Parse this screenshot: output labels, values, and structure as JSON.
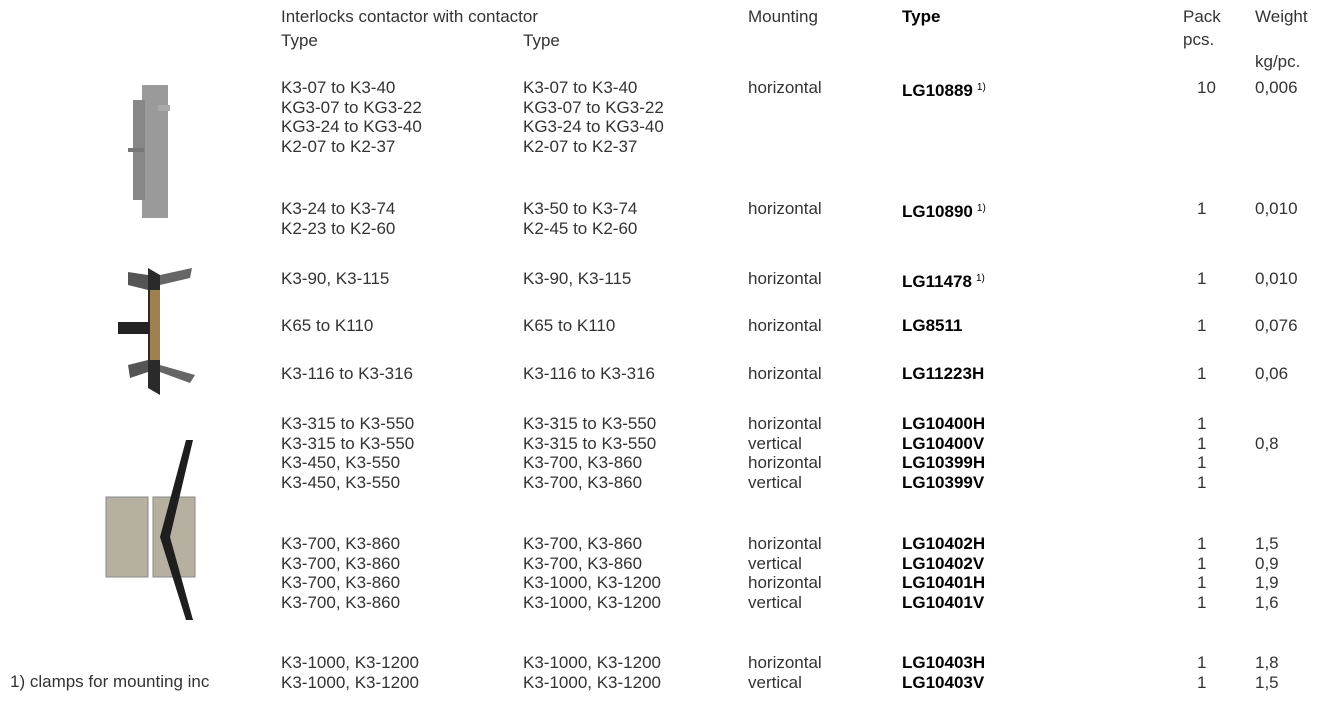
{
  "header": {
    "interlocks": "Interlocks contactor with contactor",
    "type_a": "Type",
    "type_b": "Type",
    "mounting": "Mounting",
    "type": "Type",
    "pack": "Pack",
    "pcs": "pcs.",
    "weight": "Weight",
    "unit": "kg/pc."
  },
  "groups": [
    {
      "a": [
        "K3-07 to K3-40",
        "KG3-07 to KG3-22",
        "KG3-24 to KG3-40",
        "K2-07 to K2-37"
      ],
      "b": [
        "K3-07 to K3-40",
        "KG3-07 to KG3-22",
        "KG3-24 to KG3-40",
        "K2-07 to K2-37"
      ],
      "mounting": [
        "horizontal"
      ],
      "type": [
        "LG10889"
      ],
      "note": "1)",
      "pack": [
        "10"
      ],
      "weight": [
        "0,006"
      ]
    },
    {
      "a": [
        "K3-24 to K3-74",
        "K2-23 to K2-60"
      ],
      "b": [
        "K3-50 to K3-74",
        "K2-45 to K2-60"
      ],
      "mounting": [
        "horizontal"
      ],
      "type": [
        "LG10890"
      ],
      "note": "1)",
      "pack": [
        "1"
      ],
      "weight": [
        "0,010"
      ]
    },
    {
      "a": [
        "K3-90, K3-115"
      ],
      "b": [
        "K3-90, K3-115"
      ],
      "mounting": [
        "horizontal"
      ],
      "type": [
        "LG11478"
      ],
      "note": "1)",
      "pack": [
        "1"
      ],
      "weight": [
        "0,010"
      ]
    },
    {
      "a": [
        "K65 to K110"
      ],
      "b": [
        "K65 to K110"
      ],
      "mounting": [
        "horizontal"
      ],
      "type": [
        "LG8511"
      ],
      "pack": [
        "1"
      ],
      "weight": [
        "0,076"
      ]
    },
    {
      "a": [
        "K3-116 to K3-316"
      ],
      "b": [
        "K3-116 to K3-316"
      ],
      "mounting": [
        "horizontal"
      ],
      "type": [
        "LG11223H"
      ],
      "pack": [
        "1"
      ],
      "weight": [
        "0,06"
      ]
    },
    {
      "a": [
        "K3-315 to K3-550",
        "K3-315 to K3-550",
        "K3-450, K3-550",
        "K3-450, K3-550"
      ],
      "b": [
        "K3-315 to K3-550",
        "K3-315 to K3-550",
        "K3-700, K3-860",
        "K3-700, K3-860"
      ],
      "mounting": [
        "horizontal",
        "vertical",
        "horizontal",
        "vertical"
      ],
      "type": [
        "LG10400H",
        "LG10400V",
        "LG10399H",
        "LG10399V"
      ],
      "pack": [
        "1",
        "1",
        "1",
        "1"
      ],
      "weight": [
        "0,8"
      ]
    },
    {
      "a": [
        "K3-700, K3-860",
        "K3-700, K3-860",
        "K3-700, K3-860",
        "K3-700, K3-860"
      ],
      "b": [
        "K3-700, K3-860",
        "K3-700, K3-860",
        "K3-1000, K3-1200",
        "K3-1000, K3-1200"
      ],
      "mounting": [
        "horizontal",
        "vertical",
        "horizontal",
        "vertical"
      ],
      "type": [
        "LG10402H",
        "LG10402V",
        "LG10401H",
        "LG10401V"
      ],
      "pack": [
        "1",
        "1",
        "1",
        "1"
      ],
      "weight": [
        "1,5",
        "0,9",
        "1,9",
        "1,6"
      ]
    },
    {
      "a": [
        "K3-1000, K3-1200",
        "K3-1000, K3-1200"
      ],
      "b": [
        "K3-1000, K3-1200",
        "K3-1000, K3-1200"
      ],
      "mounting": [
        "horizontal",
        "vertical"
      ],
      "type": [
        "LG10403H",
        "LG10403V"
      ],
      "pack": [
        "1",
        "1"
      ],
      "weight": [
        "1,8",
        "1,5"
      ]
    }
  ],
  "footnote": "1) clamps for mounting inc"
}
